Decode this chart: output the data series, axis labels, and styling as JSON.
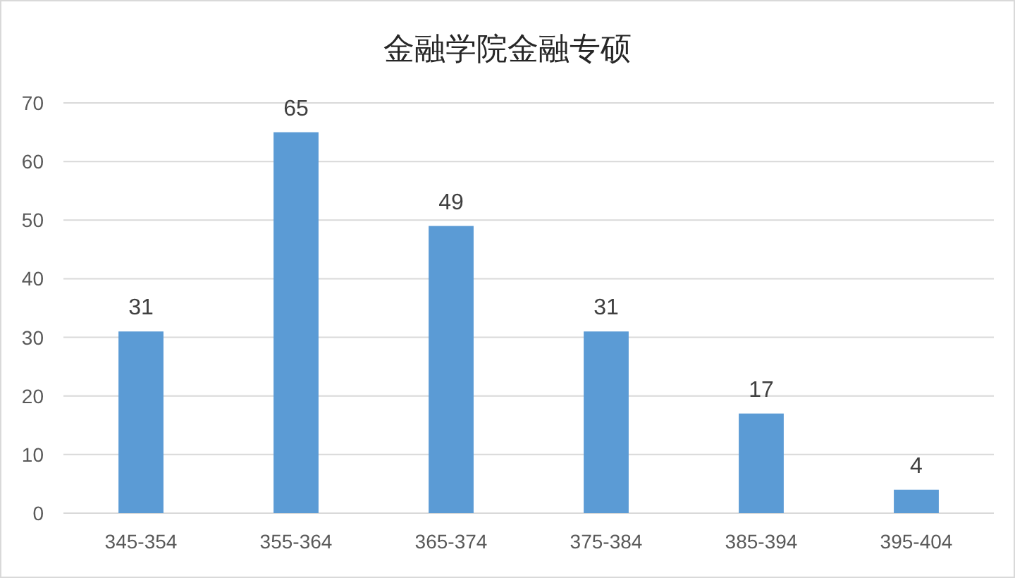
{
  "chart_data": {
    "type": "bar",
    "title": "金融学院金融专硕",
    "categories": [
      "345-354",
      "355-364",
      "365-374",
      "375-384",
      "385-394",
      "395-404"
    ],
    "values": [
      31,
      65,
      49,
      31,
      17,
      4
    ],
    "color": "#5b9bd5",
    "ylim": [
      0,
      70
    ],
    "yticks": [
      0,
      10,
      20,
      30,
      40,
      50,
      60,
      70
    ],
    "grid": "y",
    "data_labels": true
  }
}
